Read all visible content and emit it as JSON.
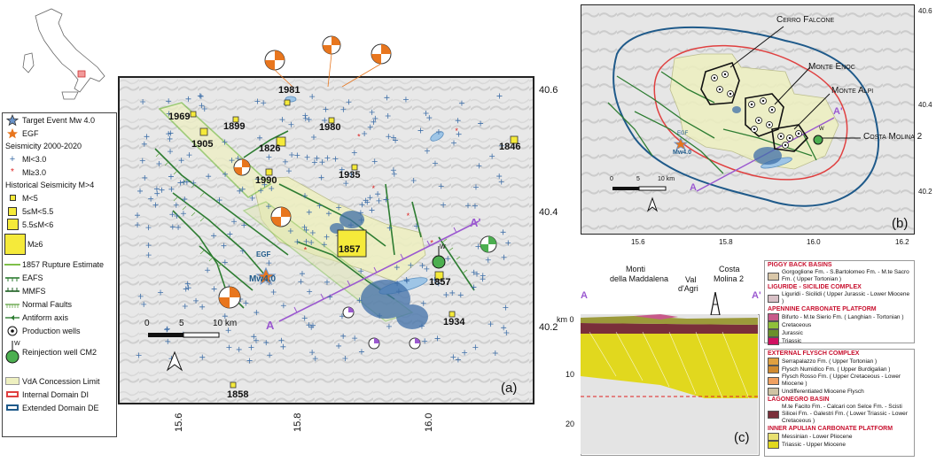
{
  "panel_a": {
    "panel_label": "(a)",
    "lat_ticks": [
      "40.6",
      "40.4",
      "40.2"
    ],
    "lon_ticks": [
      "15.6",
      "15.8",
      "16.0"
    ],
    "scale_labels": [
      "0",
      "5",
      "10 km"
    ],
    "years": [
      "1981",
      "1980",
      "1969",
      "1899",
      "1905",
      "1826",
      "1846",
      "1990",
      "1935",
      "1857",
      "1857",
      "1934",
      "1858"
    ],
    "egf_label": "EGF",
    "mw_label": "Mw4.0",
    "well_label": "W",
    "profile_a": "A",
    "profile_a_prime": "A'"
  },
  "legend": {
    "target_event": "Target Event Mw 4.0",
    "egf": "EGF",
    "seismicity_title": "Seismicity 2000-2020",
    "ml_low": "Ml<3.0",
    "ml_high": "Ml≥3.0",
    "historical_title": "Historical Seismicity M>4",
    "m_lt5": "M<5",
    "m_5_55": "5≤M<5.5",
    "m_55_6": "5.5≤M<6",
    "m_ge6": "M≥6",
    "rupture": "1857 Rupture Estimate",
    "eafs": "EAFS",
    "mmfs": "MMFS",
    "normal_faults": "Normal Faults",
    "antiform": "Antiform axis",
    "production_wells": "Production wells",
    "reinjection": "Reinjection well CM2",
    "reinjection_w": "W",
    "vda": "VdA Concession Limit",
    "internal": "Internal Domain DI",
    "extended": "Extended Domain DE"
  },
  "panel_b": {
    "panel_label": "(b)",
    "lat_ticks": [
      "40.6",
      "40.4",
      "40.2"
    ],
    "lon_ticks": [
      "15.6",
      "15.8",
      "16.0",
      "16.2"
    ],
    "places": [
      "Cerro Falcone",
      "Monte Enoc",
      "Monte Alpi",
      "Costa Molina 2"
    ],
    "egf_label": "EGF",
    "mw_label": "Mw4.0",
    "well_w": "W",
    "scale_labels": [
      "0",
      "5",
      "10 km"
    ],
    "profile_a_prime": "A'",
    "profile_a": "A"
  },
  "panel_c": {
    "panel_label": "(c)",
    "mountains": [
      "Monti",
      "della Maddalena"
    ],
    "val": [
      "Val",
      "d'Agri"
    ],
    "costa": [
      "Costa",
      "Molina 2"
    ],
    "a": "A",
    "a_prime": "A'",
    "depths": [
      "km 0",
      "10",
      "20"
    ]
  },
  "strat_legend_1": {
    "piggy_title": "PIGGY BACK BASINS",
    "piggy_item": "Gorgoglione Fm. - S.Bartolomeo Fm. - M.te Sacro Fm. ( Upper Tortonian )",
    "liguride_title": "LIGURIDE - SICILIDE COMPLEX",
    "liguride_item": "Liguridi - Sicilidi ( Upper Jurassic - Lower Miocene )",
    "apennine_title": "APENNINE CARBONATE PLATFORM",
    "apennine_items": [
      "Bifurto - M.te Sierio Fm. ( Langhian - Tortonian )",
      "Cretaceous",
      "Jurassic",
      "Triassic"
    ]
  },
  "strat_legend_2": {
    "flysch_title": "EXTERNAL FLYSCH COMPLEX",
    "flysch_items": [
      "Serrapalazzo Fm. ( Upper Tortonian )",
      "Flysch Numidico Fm. ( Upper Burdigalian )",
      "Flysch Rosso Fm. ( Upper Cretaceous - Lower Miocene )",
      "Undifferentiated Miocene Flysch"
    ],
    "lagonegro_title": "LAGONEGRO BASIN",
    "lagonegro_items": [
      "M.te Facito Fm. - Calcari con Selce Fm. - Scisti Silicei Fm. - Galestri Fm. ( Lower Triassic - Lower Cretaceous )"
    ],
    "inner_title": "INNER APULIAN CARBONATE PLATFORM",
    "inner_items": [
      "Messinian - Lower Pliocene",
      "Triassic - Upper Miocene"
    ]
  },
  "colors": {
    "seismicity_blue": "#3f6fa8",
    "vda_fill": "#eef0c0",
    "internal_domain": "#e04040",
    "extended_domain": "#1f5a8a",
    "fault_green": "#2e7d32",
    "profile_purple": "#9b59d0",
    "hist_yellow": "#f5ea3a",
    "egf_orange": "#e8761e"
  }
}
